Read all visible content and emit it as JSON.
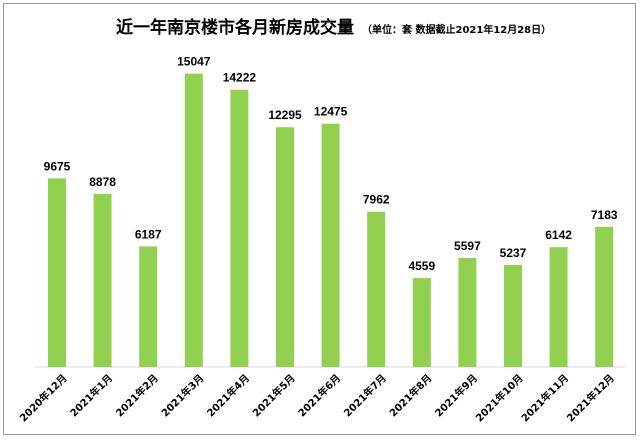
{
  "chart_data": {
    "type": "bar",
    "title": "近一年南京楼市各月新房成交量",
    "subtitle": "（单位：套 数据截止2021年12月28日）",
    "categories": [
      "2020年12月",
      "2021年1月",
      "2021年2月",
      "2021年3月",
      "2021年4月",
      "2021年5月",
      "2021年6月",
      "2021年7月",
      "2021年8月",
      "2021年9月",
      "2021年10月",
      "2021年11月",
      "2021年12月"
    ],
    "values": [
      9675,
      8878,
      6187,
      15047,
      14222,
      12295,
      12475,
      7962,
      4559,
      5597,
      5237,
      6142,
      7183
    ],
    "ylim": [
      0,
      16000
    ],
    "xlabel": "",
    "ylabel": "",
    "grid": false,
    "legend": "none",
    "bar_color": "#92d050"
  }
}
